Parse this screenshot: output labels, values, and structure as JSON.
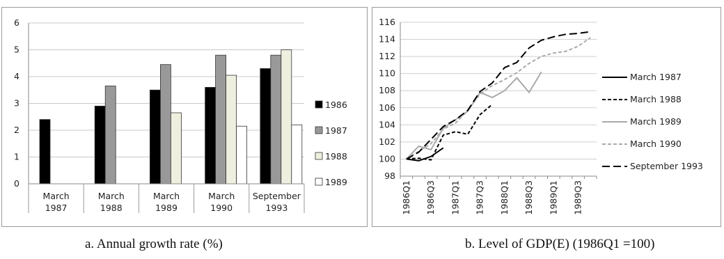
{
  "chart_data": [
    {
      "type": "bar",
      "caption": "a. Annual growth rate (%)",
      "categories": [
        [
          "March",
          "1987"
        ],
        [
          "March",
          "1988"
        ],
        [
          "March",
          "1989"
        ],
        [
          "March",
          "1990"
        ],
        [
          "September",
          "1993"
        ]
      ],
      "series": [
        {
          "name": "1986",
          "color": "#000000",
          "values": [
            2.4,
            2.9,
            3.5,
            3.6,
            4.3
          ]
        },
        {
          "name": "1987",
          "color": "#999999",
          "values": [
            null,
            3.65,
            4.45,
            4.8,
            4.8
          ]
        },
        {
          "name": "1988",
          "color": "#efefdf",
          "values": [
            null,
            null,
            2.65,
            4.05,
            5.0
          ]
        },
        {
          "name": "1989",
          "color": "#ffffff",
          "values": [
            null,
            null,
            null,
            2.15,
            2.2
          ]
        }
      ],
      "ylim": [
        0,
        6
      ],
      "yticks": [
        0,
        1,
        2,
        3,
        4,
        5,
        6
      ],
      "grid": true,
      "legend": "right"
    },
    {
      "type": "line",
      "caption": "b. Level of GDP(E) (1986Q1 =100)",
      "x": [
        "1986Q1",
        "1986Q2",
        "1986Q3",
        "1986Q4",
        "1987Q1",
        "1987Q2",
        "1987Q3",
        "1987Q4",
        "1988Q1",
        "1988Q2",
        "1988Q3",
        "1988Q4",
        "1989Q1",
        "1989Q2",
        "1989Q3",
        "1989Q4"
      ],
      "xticklabels": [
        "1986Q1",
        "",
        "1986Q3",
        "",
        "1987Q1",
        "",
        "1987Q3",
        "",
        "1988Q1",
        "",
        "1988Q3",
        "",
        "1989Q1",
        "",
        "1989Q3",
        ""
      ],
      "series": [
        {
          "name": "March 1987",
          "color": "#000000",
          "dash": "solid",
          "values": [
            100,
            99.8,
            100.3,
            101.3,
            null,
            null,
            null,
            null,
            null,
            null,
            null,
            null,
            null,
            null,
            null,
            null
          ]
        },
        {
          "name": "March 1988",
          "color": "#000000",
          "dash": "dash-short",
          "values": [
            100,
            100.1,
            99.9,
            102.8,
            103.2,
            102.9,
            105.2,
            106.4,
            null,
            null,
            null,
            null,
            null,
            null,
            null,
            null
          ]
        },
        {
          "name": "March 1989",
          "color": "#aaaaaa",
          "dash": "solid",
          "values": [
            100,
            101.5,
            101.1,
            103.6,
            104.6,
            105.6,
            107.8,
            107.2,
            108.0,
            109.5,
            107.8,
            110.2,
            null,
            null,
            null,
            null
          ]
        },
        {
          "name": "March 1990",
          "color": "#aaaaaa",
          "dash": "dash-short",
          "values": [
            100,
            100.9,
            101.8,
            103.5,
            104.2,
            105.7,
            107.6,
            108.6,
            109.3,
            110.1,
            111.2,
            112.0,
            112.4,
            112.6,
            113.2,
            114.2
          ]
        },
        {
          "name": "September 1993",
          "color": "#000000",
          "dash": "dash-long",
          "values": [
            100,
            100.8,
            102.3,
            103.8,
            104.6,
            105.7,
            107.9,
            108.9,
            110.7,
            111.3,
            113.0,
            113.9,
            114.3,
            114.6,
            114.7,
            114.9
          ]
        }
      ],
      "ylim": [
        98,
        116
      ],
      "yticks": [
        98,
        100,
        102,
        104,
        106,
        108,
        110,
        112,
        114,
        116
      ],
      "grid": true,
      "legend": "right"
    }
  ]
}
